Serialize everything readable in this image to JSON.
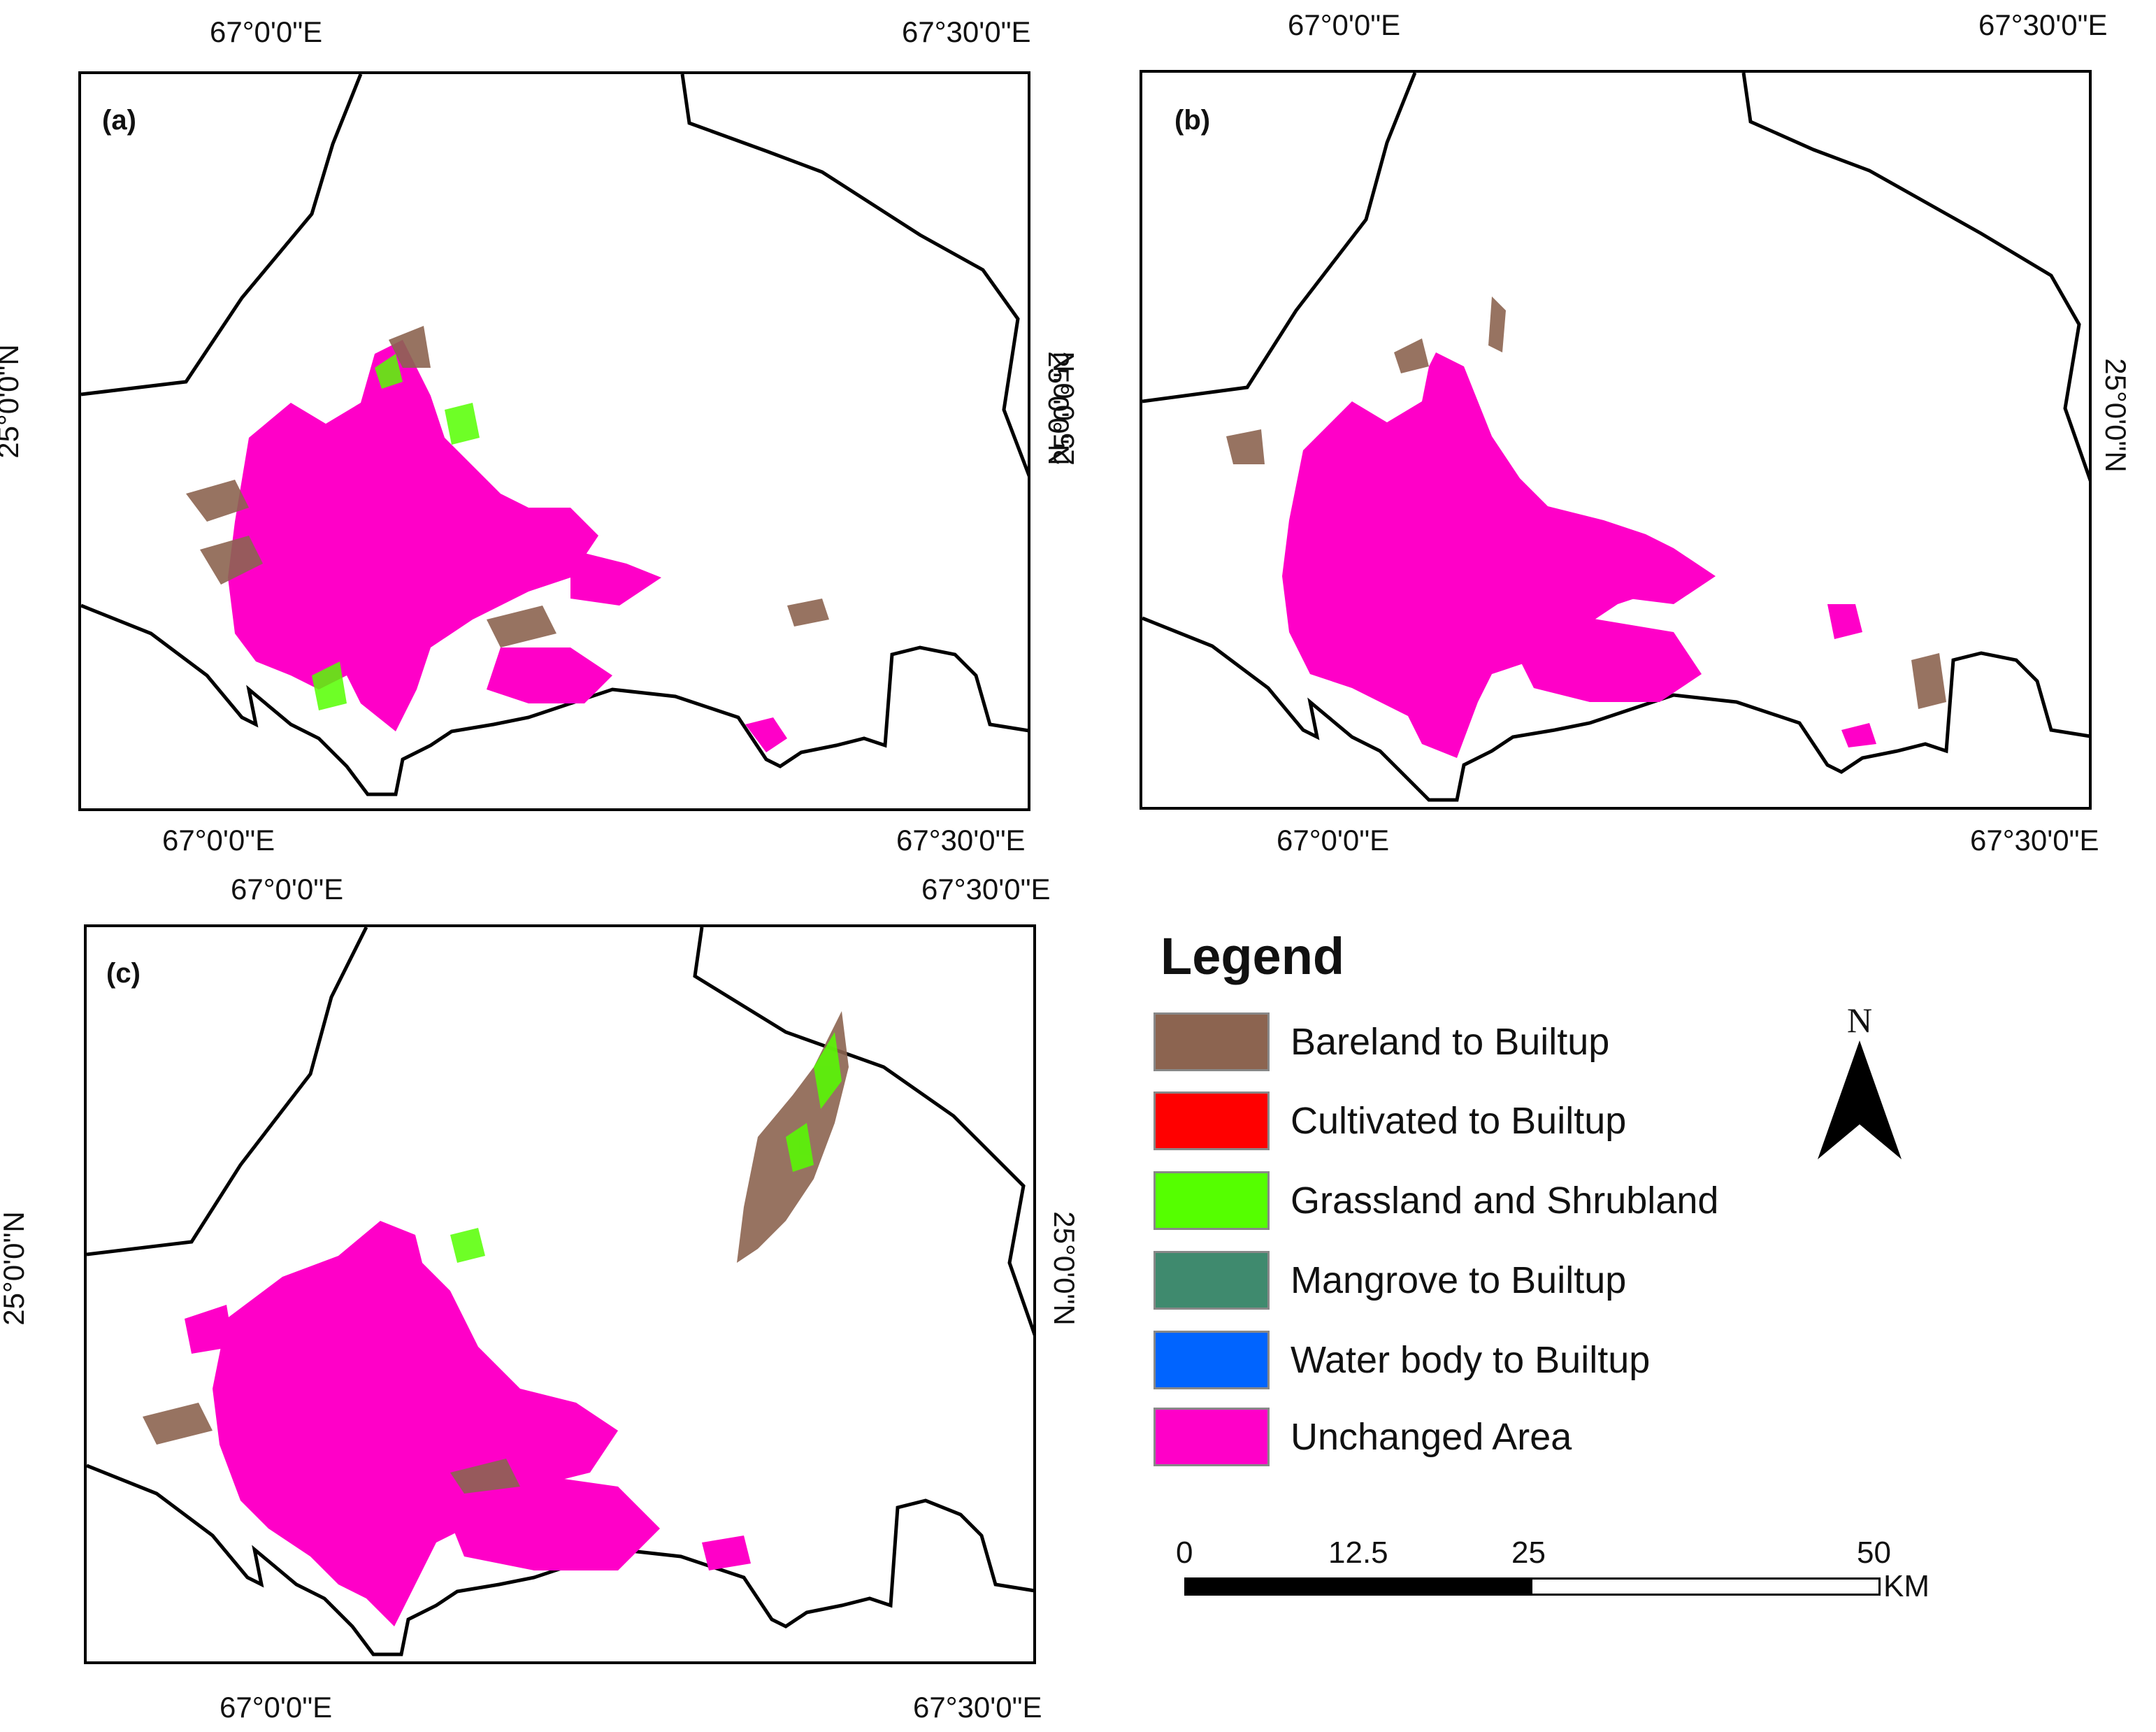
{
  "panels": [
    {
      "id": "a",
      "label": "(a)",
      "top_ticks": [
        "67°0'0\"E",
        "67°30'0\"E"
      ],
      "bottom_ticks": [
        "67°0'0\"E",
        "67°30'0\"E"
      ],
      "left_tick": "25°0'0\"N",
      "right_tick": "25°0'0\"N"
    },
    {
      "id": "b",
      "label": "(b)",
      "top_ticks": [
        "67°0'0\"E",
        "67°30'0\"E"
      ],
      "bottom_ticks": [
        "67°0'0\"E",
        "67°30'0\"E"
      ],
      "left_tick": "25°0'0\"N",
      "right_tick": "25°0'0\"N"
    },
    {
      "id": "c",
      "label": "(c)",
      "top_ticks": [
        "67°0'0\"E",
        "67°30'0\"E"
      ],
      "bottom_ticks": [
        "67°0'0\"E",
        "67°30'0\"E"
      ],
      "left_tick": "25°0'0\"N",
      "right_tick": "25°0'0\"N"
    }
  ],
  "legend": {
    "title": "Legend",
    "items": [
      {
        "label": "Bareland to Builtup",
        "color": "#8c6450"
      },
      {
        "label": "Cultivated to Builtup",
        "color": "#ff0000"
      },
      {
        "label": "Grassland and Shrubland",
        "color": "#55ff00"
      },
      {
        "label": "Mangrove to Builtup",
        "color": "#3f8a6e"
      },
      {
        "label": "Water body to Builtup",
        "color": "#0064ff"
      },
      {
        "label": "Unchanged Area",
        "color": "#ff00c8"
      }
    ]
  },
  "north_arrow": {
    "label": "N",
    "icon": "north-arrow-icon"
  },
  "scale_bar": {
    "ticks": [
      "0",
      "12.5",
      "25",
      "50"
    ],
    "unit": "KM"
  }
}
